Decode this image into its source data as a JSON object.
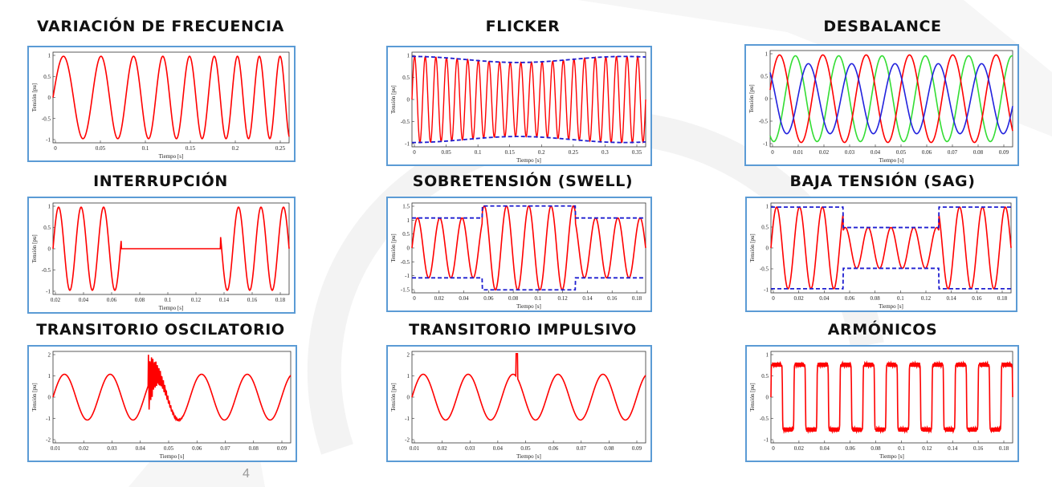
{
  "colors": {
    "frame_border": "#5b9bd5",
    "signal_red": "#ff0000",
    "envelope_blue": "#1f1fd0",
    "phase_green": "#33dd33",
    "phase_blue": "#2222dd"
  },
  "page_number": "4",
  "axis": {
    "ylabel": "Tensión [pu]",
    "xlabel": "Tiempo [s]"
  },
  "panels": [
    {
      "title": "VARIACIÓN DE FRECUENCIA",
      "yticks": [
        "1",
        "0.5",
        "0",
        "-0.5",
        "-1"
      ],
      "xticks": [
        "0",
        "0.05",
        "0.1",
        "0.15",
        "0.2",
        "0.25"
      ]
    },
    {
      "title": "FLICKER",
      "yticks": [
        "1",
        "0.5",
        "0",
        "-0.5",
        "-1"
      ],
      "xticks": [
        "0",
        "0.05",
        "0.1",
        "0.15",
        "0.2",
        "0.25",
        "0.3",
        "0.35"
      ]
    },
    {
      "title": "DESBALANCE",
      "yticks": [
        "1",
        "0.5",
        "0",
        "-0.5",
        "-1"
      ],
      "xticks": [
        "0",
        "0.01",
        "0.02",
        "0.03",
        "0.04",
        "0.05",
        "0.06",
        "0.07",
        "0.08",
        "0.09"
      ]
    },
    {
      "title": "INTERRUPCIÓN",
      "yticks": [
        "1",
        "0.5",
        "0",
        "-0.5",
        "-1"
      ],
      "xticks": [
        "0.02",
        "0.04",
        "0.06",
        "0.08",
        "0.1",
        "0.12",
        "0.14",
        "0.16",
        "0.18"
      ]
    },
    {
      "title": "SOBRETENSIÓN (SWELL)",
      "yticks": [
        "1.5",
        "1",
        "0.5",
        "0",
        "-0.5",
        "-1",
        "-1.5"
      ],
      "xticks": [
        "0",
        "0.02",
        "0.04",
        "0.06",
        "0.08",
        "0.1",
        "0.12",
        "0.14",
        "0.16",
        "0.18"
      ]
    },
    {
      "title": "BAJA TENSIÓN (SAG)",
      "yticks": [
        "1",
        "0.5",
        "0",
        "-0.5",
        "-1"
      ],
      "xticks": [
        "0",
        "0.02",
        "0.04",
        "0.06",
        "0.08",
        "0.1",
        "0.12",
        "0.14",
        "0.16",
        "0.18"
      ]
    },
    {
      "title": "TRANSITORIO OSCILATORIO",
      "yticks": [
        "2",
        "1",
        "0",
        "-1",
        "-2"
      ],
      "xticks": [
        "0.01",
        "0.02",
        "0.03",
        "0.04",
        "0.05",
        "0.06",
        "0.07",
        "0.08",
        "0.09"
      ]
    },
    {
      "title": "TRANSITORIO IMPULSIVO",
      "yticks": [
        "2",
        "1",
        "0",
        "-1",
        "-2"
      ],
      "xticks": [
        "0.01",
        "0.02",
        "0.03",
        "0.04",
        "0.05",
        "0.06",
        "0.07",
        "0.08",
        "0.09"
      ]
    },
    {
      "title": "ARMÓNICOS",
      "yticks": [
        "1",
        "0.5",
        "0",
        "-0.5",
        "-1"
      ],
      "xticks": [
        "0",
        "0.02",
        "0.04",
        "0.06",
        "0.08",
        "0.1",
        "0.12",
        "0.14",
        "0.16",
        "0.18"
      ]
    }
  ]
}
